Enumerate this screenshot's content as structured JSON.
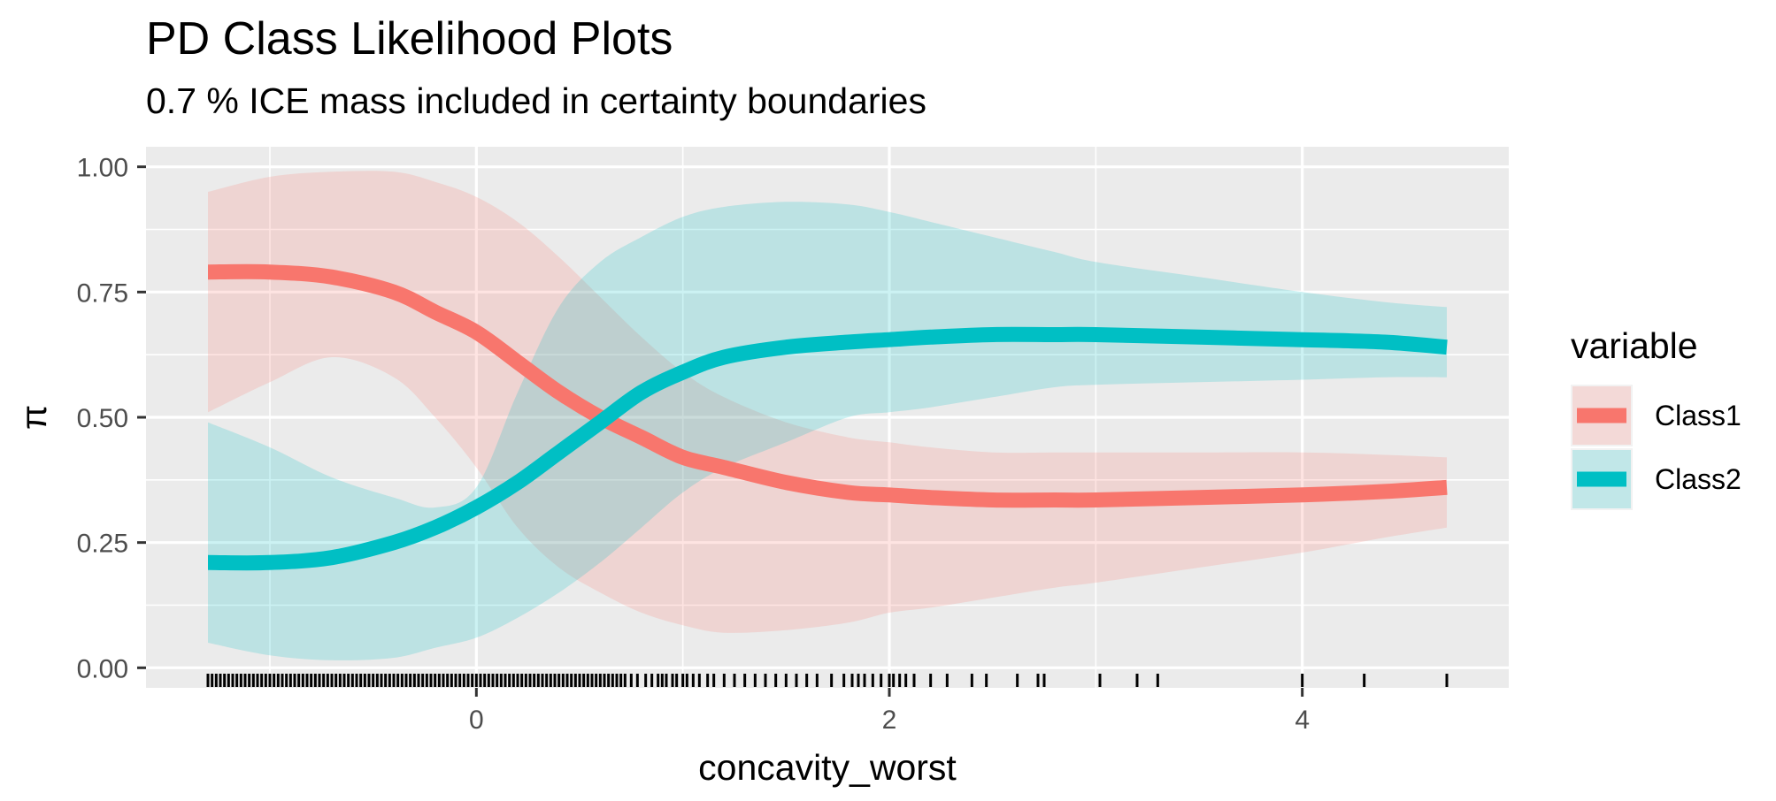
{
  "chart_data": {
    "type": "line",
    "title": "PD Class Likelihood Plots",
    "subtitle": "0.7 % ICE mass included in certainty boundaries",
    "xlabel": "concavity_worst",
    "ylabel": "π",
    "xlim": [
      -1.6,
      5.0
    ],
    "ylim": [
      -0.04,
      1.04
    ],
    "x_ticks": [
      0,
      2,
      4
    ],
    "x_tick_labels": [
      "0",
      "2",
      "4"
    ],
    "y_ticks": [
      0.0,
      0.25,
      0.5,
      0.75,
      1.0
    ],
    "y_tick_labels": [
      "0.00",
      "0.25",
      "0.50",
      "0.75",
      "1.00"
    ],
    "grid": true,
    "legend": {
      "title": "variable",
      "position": "right"
    },
    "x": [
      -1.3,
      -1.0,
      -0.7,
      -0.4,
      -0.2,
      0.0,
      0.2,
      0.4,
      0.6,
      0.8,
      1.0,
      1.2,
      1.5,
      1.8,
      2.0,
      2.2,
      2.5,
      2.8,
      3.0,
      3.5,
      4.0,
      4.4,
      4.7
    ],
    "series": [
      {
        "name": "Class1",
        "color": "#F8766D",
        "values": [
          0.79,
          0.79,
          0.78,
          0.75,
          0.71,
          0.67,
          0.61,
          0.55,
          0.5,
          0.46,
          0.42,
          0.4,
          0.37,
          0.35,
          0.345,
          0.34,
          0.335,
          0.335,
          0.335,
          0.34,
          0.345,
          0.352,
          0.36
        ],
        "lower": [
          0.51,
          0.57,
          0.62,
          0.58,
          0.5,
          0.4,
          0.28,
          0.2,
          0.15,
          0.11,
          0.085,
          0.07,
          0.075,
          0.09,
          0.11,
          0.12,
          0.14,
          0.16,
          0.17,
          0.2,
          0.23,
          0.26,
          0.28
        ],
        "upper": [
          0.95,
          0.98,
          0.99,
          0.99,
          0.97,
          0.94,
          0.89,
          0.82,
          0.74,
          0.66,
          0.59,
          0.54,
          0.49,
          0.46,
          0.45,
          0.44,
          0.43,
          0.43,
          0.43,
          0.43,
          0.43,
          0.425,
          0.42
        ]
      },
      {
        "name": "Class2",
        "color": "#00BFC4",
        "values": [
          0.21,
          0.21,
          0.22,
          0.25,
          0.28,
          0.32,
          0.37,
          0.43,
          0.49,
          0.55,
          0.59,
          0.62,
          0.64,
          0.65,
          0.655,
          0.66,
          0.665,
          0.665,
          0.665,
          0.66,
          0.655,
          0.65,
          0.64
        ],
        "lower": [
          0.05,
          0.025,
          0.015,
          0.02,
          0.04,
          0.06,
          0.1,
          0.15,
          0.21,
          0.28,
          0.35,
          0.4,
          0.45,
          0.5,
          0.51,
          0.52,
          0.54,
          0.56,
          0.565,
          0.57,
          0.575,
          0.58,
          0.58
        ],
        "upper": [
          0.49,
          0.44,
          0.38,
          0.34,
          0.32,
          0.36,
          0.55,
          0.72,
          0.81,
          0.86,
          0.9,
          0.92,
          0.93,
          0.925,
          0.91,
          0.89,
          0.86,
          0.83,
          0.81,
          0.78,
          0.75,
          0.73,
          0.72
        ]
      }
    ],
    "rug_x": [
      -1.3,
      -1.28,
      -1.26,
      -1.24,
      -1.22,
      -1.2,
      -1.18,
      -1.16,
      -1.14,
      -1.12,
      -1.1,
      -1.08,
      -1.06,
      -1.04,
      -1.02,
      -1.0,
      -0.98,
      -0.96,
      -0.94,
      -0.92,
      -0.9,
      -0.88,
      -0.86,
      -0.84,
      -0.82,
      -0.8,
      -0.78,
      -0.76,
      -0.74,
      -0.72,
      -0.7,
      -0.68,
      -0.66,
      -0.64,
      -0.62,
      -0.6,
      -0.58,
      -0.56,
      -0.54,
      -0.52,
      -0.5,
      -0.48,
      -0.46,
      -0.44,
      -0.42,
      -0.4,
      -0.38,
      -0.36,
      -0.34,
      -0.32,
      -0.3,
      -0.28,
      -0.26,
      -0.24,
      -0.22,
      -0.2,
      -0.18,
      -0.16,
      -0.14,
      -0.12,
      -0.1,
      -0.08,
      -0.06,
      -0.04,
      -0.02,
      0.0,
      0.02,
      0.04,
      0.06,
      0.08,
      0.1,
      0.12,
      0.14,
      0.16,
      0.18,
      0.2,
      0.22,
      0.24,
      0.26,
      0.28,
      0.3,
      0.32,
      0.34,
      0.36,
      0.38,
      0.4,
      0.42,
      0.44,
      0.46,
      0.48,
      0.5,
      0.52,
      0.54,
      0.56,
      0.58,
      0.6,
      0.62,
      0.64,
      0.66,
      0.68,
      0.7,
      0.72,
      0.75,
      0.78,
      0.82,
      0.85,
      0.88,
      0.9,
      0.92,
      0.95,
      0.97,
      1.0,
      1.02,
      1.05,
      1.08,
      1.12,
      1.15,
      1.2,
      1.25,
      1.3,
      1.35,
      1.4,
      1.45,
      1.5,
      1.55,
      1.6,
      1.65,
      1.72,
      1.78,
      1.82,
      1.85,
      1.88,
      1.92,
      1.96,
      2.0,
      2.02,
      2.05,
      2.08,
      2.12,
      2.2,
      2.28,
      2.4,
      2.47,
      2.62,
      2.72,
      2.75,
      3.02,
      3.2,
      3.3,
      4.0,
      4.3,
      4.7
    ]
  }
}
